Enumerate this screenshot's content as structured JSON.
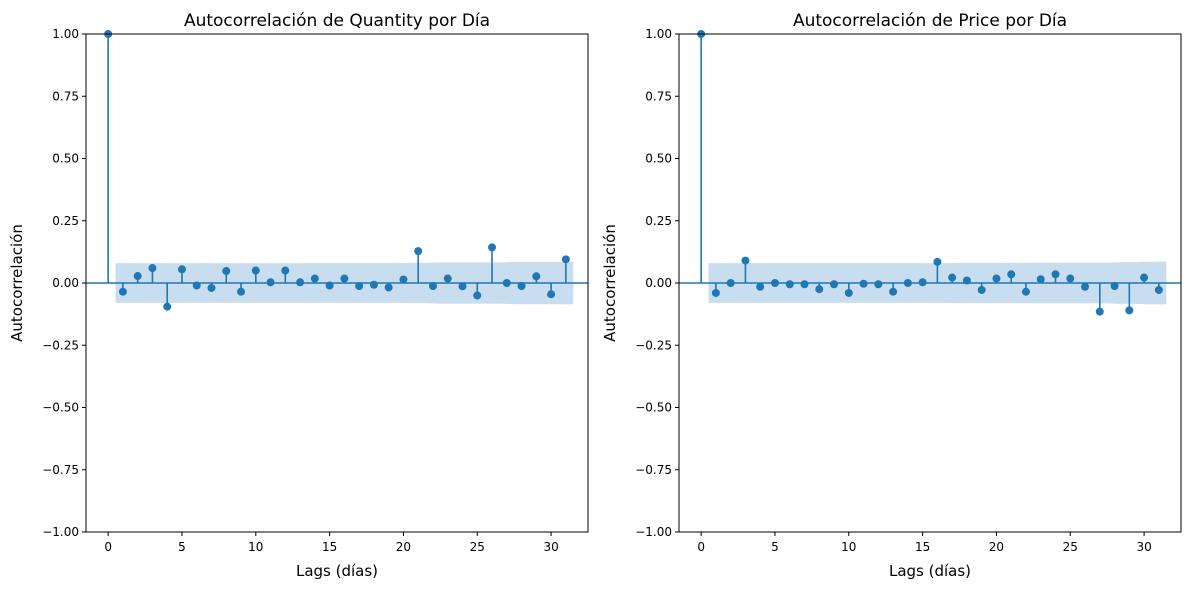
{
  "chart_data": [
    {
      "type": "stem",
      "title": "Autocorrelación de Quantity por Día",
      "xlabel": "Lags (días)",
      "ylabel": "Autocorrelación",
      "xlim": [
        -1.5,
        32.5
      ],
      "ylim": [
        -1.0,
        1.0
      ],
      "xticks": [
        0,
        5,
        10,
        15,
        20,
        25,
        30
      ],
      "xtick_labels": [
        "0",
        "5",
        "10",
        "15",
        "20",
        "25",
        "30"
      ],
      "yticks": [
        1.0,
        0.75,
        0.5,
        0.25,
        0.0,
        -0.25,
        -0.5,
        -0.75,
        -1.0
      ],
      "ytick_labels": [
        "1.00",
        "0.75",
        "0.50",
        "0.25",
        "0.00",
        "−0.25",
        "−0.50",
        "−0.75",
        "−1.00"
      ],
      "lags": [
        0,
        1,
        2,
        3,
        4,
        5,
        6,
        7,
        8,
        9,
        10,
        11,
        12,
        13,
        14,
        15,
        16,
        17,
        18,
        19,
        20,
        21,
        22,
        23,
        24,
        25,
        26,
        27,
        28,
        29,
        30,
        31
      ],
      "values": [
        1.0,
        -0.035,
        0.028,
        0.06,
        -0.095,
        0.055,
        -0.01,
        -0.02,
        0.048,
        -0.035,
        0.05,
        0.003,
        0.05,
        0.003,
        0.018,
        -0.01,
        0.018,
        -0.012,
        -0.007,
        -0.018,
        0.014,
        0.128,
        -0.012,
        0.018,
        -0.013,
        -0.05,
        0.143,
        0.0,
        -0.012,
        0.027,
        -0.045,
        0.095
      ],
      "confidence_band": {
        "lag_start": 0.5,
        "lag_end": 31.5,
        "upper": [
          0.08,
          0.08,
          0.08,
          0.08,
          0.08,
          0.08,
          0.08,
          0.08,
          0.08,
          0.08,
          0.08,
          0.08,
          0.08,
          0.08,
          0.08,
          0.08,
          0.08,
          0.08,
          0.08,
          0.08,
          0.081,
          0.081,
          0.083,
          0.083,
          0.083,
          0.083,
          0.083,
          0.085,
          0.085,
          0.085,
          0.085,
          0.086
        ],
        "lower": [
          -0.08,
          -0.08,
          -0.08,
          -0.08,
          -0.08,
          -0.08,
          -0.08,
          -0.08,
          -0.08,
          -0.08,
          -0.08,
          -0.08,
          -0.08,
          -0.08,
          -0.08,
          -0.08,
          -0.08,
          -0.08,
          -0.08,
          -0.08,
          -0.081,
          -0.081,
          -0.083,
          -0.083,
          -0.083,
          -0.083,
          -0.083,
          -0.085,
          -0.085,
          -0.085,
          -0.085,
          -0.086
        ]
      },
      "zero_line": true,
      "grid": false,
      "color": "#1f77b4",
      "band_color": "#c6dbef"
    },
    {
      "type": "stem",
      "title": "Autocorrelación de Price por Día",
      "xlabel": "Lags (días)",
      "ylabel": "Autocorrelación",
      "xlim": [
        -1.5,
        32.5
      ],
      "ylim": [
        -1.0,
        1.0
      ],
      "xticks": [
        0,
        5,
        10,
        15,
        20,
        25,
        30
      ],
      "xtick_labels": [
        "0",
        "5",
        "10",
        "15",
        "20",
        "25",
        "30"
      ],
      "yticks": [
        1.0,
        0.75,
        0.5,
        0.25,
        0.0,
        -0.25,
        -0.5,
        -0.75,
        -1.0
      ],
      "ytick_labels": [
        "1.00",
        "0.75",
        "0.50",
        "0.25",
        "0.00",
        "−0.25",
        "−0.50",
        "−0.75",
        "−1.00"
      ],
      "lags": [
        0,
        1,
        2,
        3,
        4,
        5,
        6,
        7,
        8,
        9,
        10,
        11,
        12,
        13,
        14,
        15,
        16,
        17,
        18,
        19,
        20,
        21,
        22,
        23,
        24,
        25,
        26,
        27,
        28,
        29,
        30,
        31
      ],
      "values": [
        1.0,
        -0.04,
        0.0,
        0.09,
        -0.015,
        0.0,
        -0.005,
        -0.005,
        -0.025,
        -0.005,
        -0.04,
        -0.003,
        -0.005,
        -0.035,
        0.0,
        0.003,
        0.085,
        0.022,
        0.01,
        -0.028,
        0.018,
        0.035,
        -0.035,
        0.015,
        0.035,
        0.018,
        -0.015,
        -0.115,
        -0.012,
        -0.11,
        0.022,
        -0.028
      ],
      "confidence_band": {
        "lag_start": 0.5,
        "lag_end": 31.5,
        "upper": [
          0.08,
          0.08,
          0.08,
          0.08,
          0.08,
          0.08,
          0.08,
          0.08,
          0.08,
          0.08,
          0.08,
          0.08,
          0.08,
          0.08,
          0.08,
          0.08,
          0.08,
          0.081,
          0.081,
          0.081,
          0.081,
          0.081,
          0.082,
          0.082,
          0.082,
          0.082,
          0.082,
          0.082,
          0.084,
          0.084,
          0.086,
          0.086
        ],
        "lower": [
          -0.08,
          -0.08,
          -0.08,
          -0.08,
          -0.08,
          -0.08,
          -0.08,
          -0.08,
          -0.08,
          -0.08,
          -0.08,
          -0.08,
          -0.08,
          -0.08,
          -0.08,
          -0.08,
          -0.08,
          -0.081,
          -0.081,
          -0.081,
          -0.081,
          -0.081,
          -0.082,
          -0.082,
          -0.082,
          -0.082,
          -0.082,
          -0.082,
          -0.084,
          -0.084,
          -0.086,
          -0.086
        ]
      },
      "zero_line": true,
      "grid": false,
      "color": "#1f77b4",
      "band_color": "#c6dbef"
    }
  ]
}
